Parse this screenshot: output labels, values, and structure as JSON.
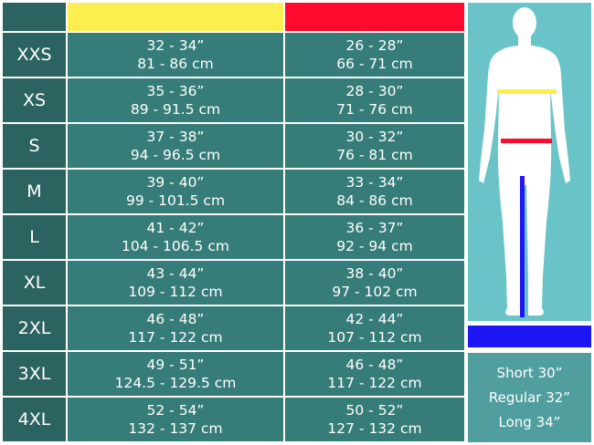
{
  "colors": {
    "chest": "#fdee50",
    "waist": "#fe0a2e",
    "inseam": "#1e17f5",
    "size_bg": "#2b6361",
    "cell_bg": "#367c79"
  },
  "rows": [
    {
      "size": "XXS",
      "chest_in": "32 - 34”",
      "chest_cm": "81 - 86 cm",
      "waist_in": "26 - 28”",
      "waist_cm": "66 - 71 cm"
    },
    {
      "size": "XS",
      "chest_in": "35 - 36”",
      "chest_cm": "89 - 91.5 cm",
      "waist_in": "28 - 30”",
      "waist_cm": "71 - 76 cm"
    },
    {
      "size": "S",
      "chest_in": "37 - 38”",
      "chest_cm": "94 - 96.5 cm",
      "waist_in": "30 - 32”",
      "waist_cm": "76 - 81 cm"
    },
    {
      "size": "M",
      "chest_in": "39 - 40”",
      "chest_cm": "99 - 101.5 cm",
      "waist_in": "33 - 34”",
      "waist_cm": "84 - 86 cm"
    },
    {
      "size": "L",
      "chest_in": "41 - 42”",
      "chest_cm": "104 - 106.5 cm",
      "waist_in": "36 - 37”",
      "waist_cm": "92 - 94 cm"
    },
    {
      "size": "XL",
      "chest_in": "43 - 44”",
      "chest_cm": "109 - 112 cm",
      "waist_in": "38 - 40”",
      "waist_cm": "97 - 102 cm"
    },
    {
      "size": "2XL",
      "chest_in": "46 - 48”",
      "chest_cm": "117 - 122 cm",
      "waist_in": "42 - 44”",
      "waist_cm": "107 - 112 cm"
    },
    {
      "size": "3XL",
      "chest_in": "49 - 51”",
      "chest_cm": "124.5 - 129.5 cm",
      "waist_in": "46 - 48”",
      "waist_cm": "117 - 122 cm"
    },
    {
      "size": "4XL",
      "chest_in": "52 - 54”",
      "chest_cm": "132 - 137 cm",
      "waist_in": "50 - 52”",
      "waist_cm": "127 - 132 cm"
    }
  ],
  "inseam": [
    "Short 30”",
    "Regular 32”",
    "Long 34”"
  ],
  "figure_icon": "human-body-silhouette"
}
